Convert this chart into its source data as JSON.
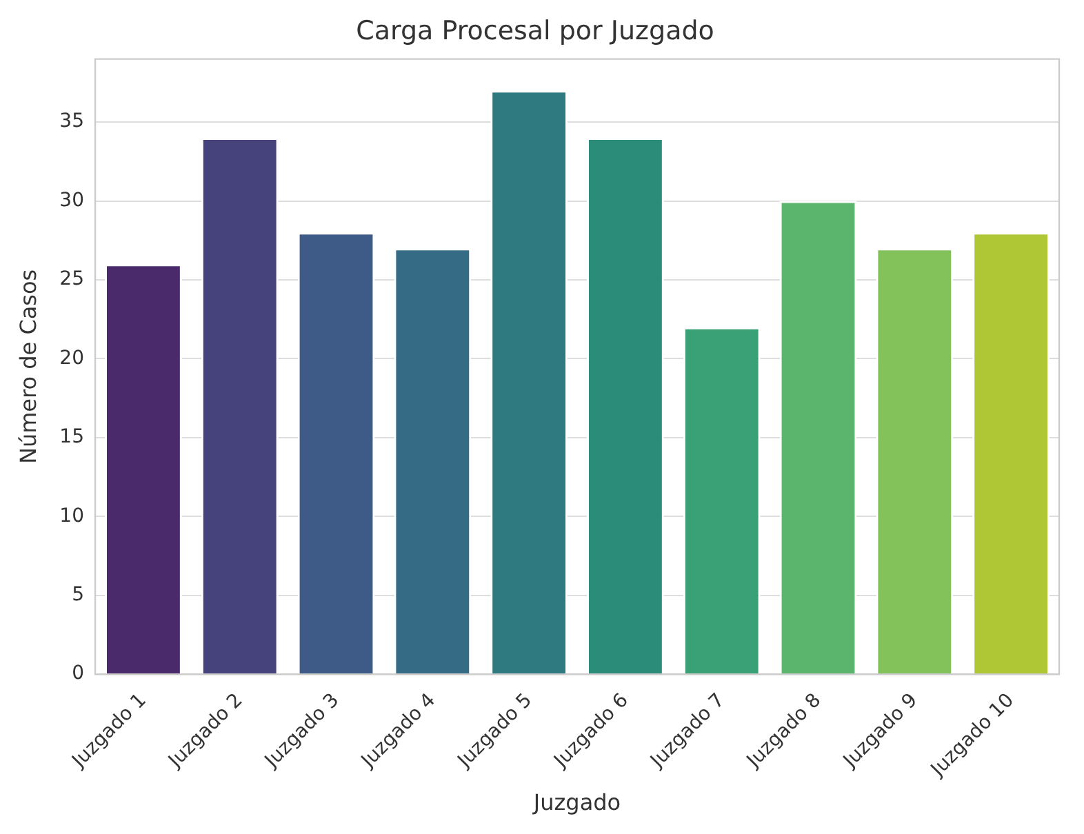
{
  "chart_data": {
    "type": "bar",
    "title": "Carga Procesal por Juzgado",
    "xlabel": "Juzgado",
    "ylabel": "Número de Casos",
    "categories": [
      "Juzgado 1",
      "Juzgado 2",
      "Juzgado 3",
      "Juzgado 4",
      "Juzgado 5",
      "Juzgado 6",
      "Juzgado 7",
      "Juzgado 8",
      "Juzgado 9",
      "Juzgado 10"
    ],
    "values": [
      26,
      34,
      28,
      27,
      37,
      34,
      22,
      30,
      27,
      28
    ],
    "colors": [
      "#4a2a6a",
      "#46437c",
      "#3e5a87",
      "#356b85",
      "#2e7a80",
      "#2b8c7a",
      "#3aa177",
      "#5bb56d",
      "#83c15a",
      "#b0c735"
    ],
    "ylim": [
      0,
      39
    ],
    "yticks": [
      0,
      5,
      10,
      15,
      20,
      25,
      30,
      35
    ],
    "grid": "y",
    "legend": false
  }
}
